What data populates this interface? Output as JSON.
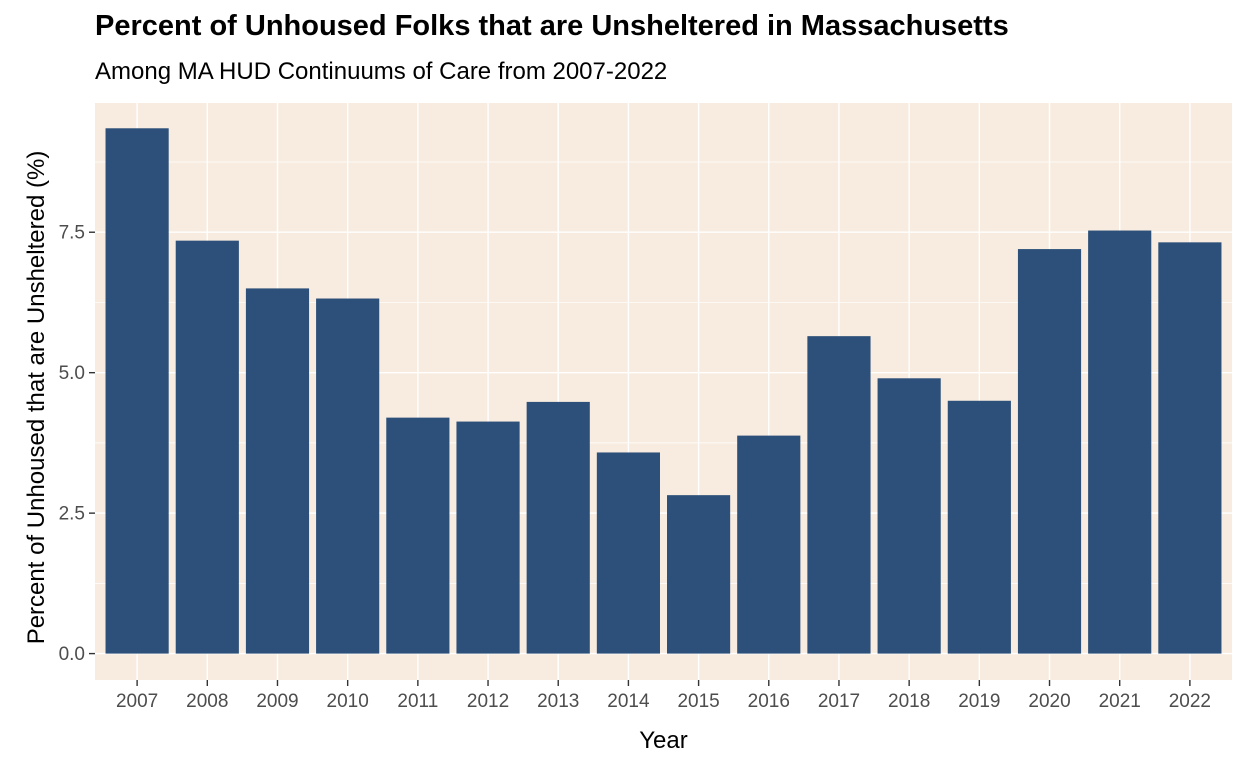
{
  "chart_data": {
    "type": "bar",
    "title": "Percent of Unhoused Folks that are Unsheltered in Massachusetts",
    "subtitle": "Among MA HUD Continuums of Care from 2007-2022",
    "xlabel": "Year",
    "ylabel": "Percent of Unhoused that are Unsheltered (%)",
    "categories": [
      "2007",
      "2008",
      "2009",
      "2010",
      "2011",
      "2012",
      "2013",
      "2014",
      "2015",
      "2016",
      "2017",
      "2018",
      "2019",
      "2020",
      "2021",
      "2022"
    ],
    "values": [
      9.35,
      7.35,
      6.5,
      6.32,
      4.2,
      4.13,
      4.48,
      3.58,
      2.82,
      3.88,
      5.65,
      4.9,
      4.5,
      7.2,
      7.53,
      7.32
    ],
    "yticks": [
      0.0,
      2.5,
      5.0,
      7.5
    ],
    "ytick_labels": [
      "0.0",
      "2.5",
      "5.0",
      "7.5"
    ],
    "ylim": [
      -0.47,
      9.8
    ],
    "grid": true,
    "colors": {
      "bar": "#2c5079",
      "panel_background": "#f8ece0",
      "gridline": "#ffffff"
    }
  }
}
